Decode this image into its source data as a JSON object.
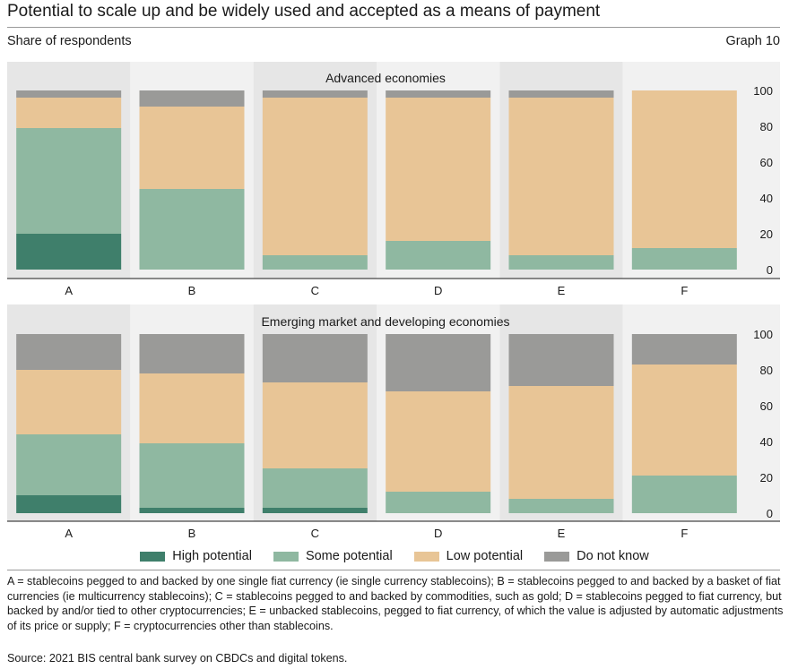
{
  "header": {
    "title": "Potential to scale up and be widely used and accepted as a means of payment",
    "subtitle": "Share of respondents",
    "graph_number": "Graph 10"
  },
  "chart_data": {
    "type": "bar",
    "stacked": true,
    "ylim": [
      0,
      100
    ],
    "yticks": [
      0,
      20,
      40,
      60,
      80,
      100
    ],
    "y_axis_position": "right",
    "legend_position": "bottom",
    "colors": {
      "High potential": "#3f7f6b",
      "Some potential": "#8fb8a1",
      "Low potential": "#e8c596",
      "Do not know": "#9a9a98"
    },
    "legend": [
      "High potential",
      "Some potential",
      "Low potential",
      "Do not know"
    ],
    "panels": [
      {
        "title": "Advanced economies",
        "categories": [
          "A",
          "B",
          "C",
          "D",
          "E",
          "F"
        ],
        "series": [
          {
            "name": "High potential",
            "values": [
              20,
              0,
              0,
              0,
              0,
              0
            ]
          },
          {
            "name": "Some potential",
            "values": [
              59,
              45,
              8,
              16,
              8,
              12
            ]
          },
          {
            "name": "Low potential",
            "values": [
              17,
              46,
              88,
              80,
              88,
              88
            ]
          },
          {
            "name": "Do not know",
            "values": [
              4,
              9,
              4,
              4,
              4,
              0
            ]
          }
        ]
      },
      {
        "title": "Emerging market and developing economies",
        "categories": [
          "A",
          "B",
          "C",
          "D",
          "E",
          "F"
        ],
        "series": [
          {
            "name": "High potential",
            "values": [
              10,
              3,
              3,
              0,
              0,
              0
            ]
          },
          {
            "name": "Some potential",
            "values": [
              34,
              36,
              22,
              12,
              8,
              21
            ]
          },
          {
            "name": "Low potential",
            "values": [
              36,
              39,
              48,
              56,
              63,
              62
            ]
          },
          {
            "name": "Do not know",
            "values": [
              20,
              22,
              27,
              32,
              29,
              17
            ]
          }
        ]
      }
    ]
  },
  "notes": "A = stablecoins pegged to and backed by one single fiat currency (ie single currency stablecoins); B = stablecoins pegged to and backed by a basket of fiat currencies (ie multicurrency stablecoins); C = stablecoins pegged to and backed by commodities, such as gold; D = stablecoins pegged to fiat currency, but backed by and/or tied to other cryptocurrencies; E = unbacked stablecoins, pegged to fiat currency, of which the value is adjusted by automatic adjustments of its price or supply; F = cryptocurrencies other than stablecoins.",
  "source": "Source: 2021 BIS central bank survey on CBDCs and digital tokens."
}
